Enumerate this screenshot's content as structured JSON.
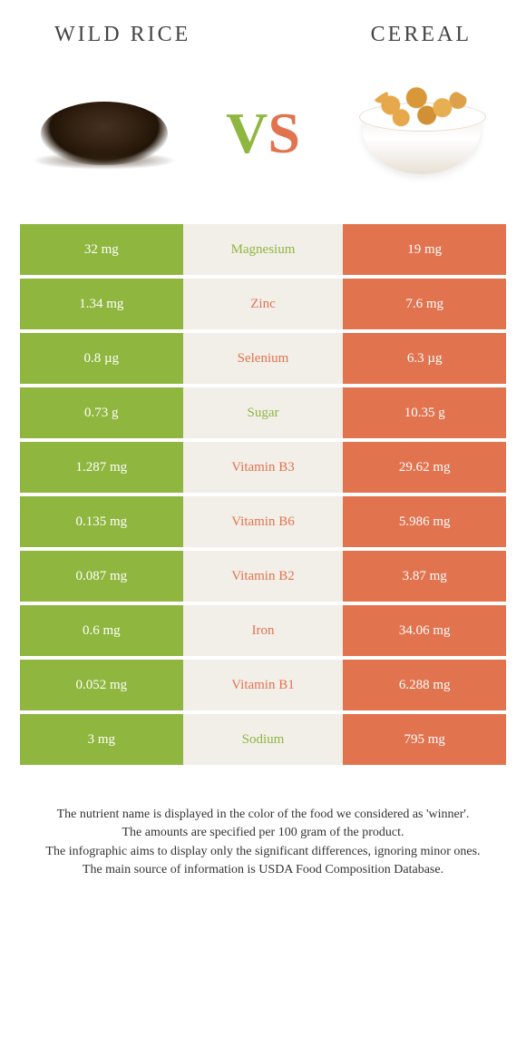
{
  "header": {
    "left": "WILD RICE",
    "right": "CEREAL"
  },
  "vs": {
    "v": "V",
    "s": "S"
  },
  "colors": {
    "green": "#8fb63f",
    "orange": "#e2734f",
    "mid_bg": "#f2efe9",
    "white": "#ffffff"
  },
  "rows": [
    {
      "left": "32 mg",
      "label": "Magnesium",
      "right": "19 mg",
      "winner": "green"
    },
    {
      "left": "1.34 mg",
      "label": "Zinc",
      "right": "7.6 mg",
      "winner": "orange"
    },
    {
      "left": "0.8 µg",
      "label": "Selenium",
      "right": "6.3 µg",
      "winner": "orange"
    },
    {
      "left": "0.73 g",
      "label": "Sugar",
      "right": "10.35 g",
      "winner": "green"
    },
    {
      "left": "1.287 mg",
      "label": "Vitamin B3",
      "right": "29.62 mg",
      "winner": "orange"
    },
    {
      "left": "0.135 mg",
      "label": "Vitamin B6",
      "right": "5.986 mg",
      "winner": "orange"
    },
    {
      "left": "0.087 mg",
      "label": "Vitamin B2",
      "right": "3.87 mg",
      "winner": "orange"
    },
    {
      "left": "0.6 mg",
      "label": "Iron",
      "right": "34.06 mg",
      "winner": "orange"
    },
    {
      "left": "0.052 mg",
      "label": "Vitamin B1",
      "right": "6.288 mg",
      "winner": "orange"
    },
    {
      "left": "3 mg",
      "label": "Sodium",
      "right": "795 mg",
      "winner": "green"
    }
  ],
  "footnote": {
    "l1": "The nutrient name is displayed in the color of the food we considered as 'winner'.",
    "l2": "The amounts are specified per 100 gram of the product.",
    "l3": "The infographic aims to display only the significant differences, ignoring minor ones.",
    "l4": "The main source of information is USDA Food Composition Database."
  }
}
